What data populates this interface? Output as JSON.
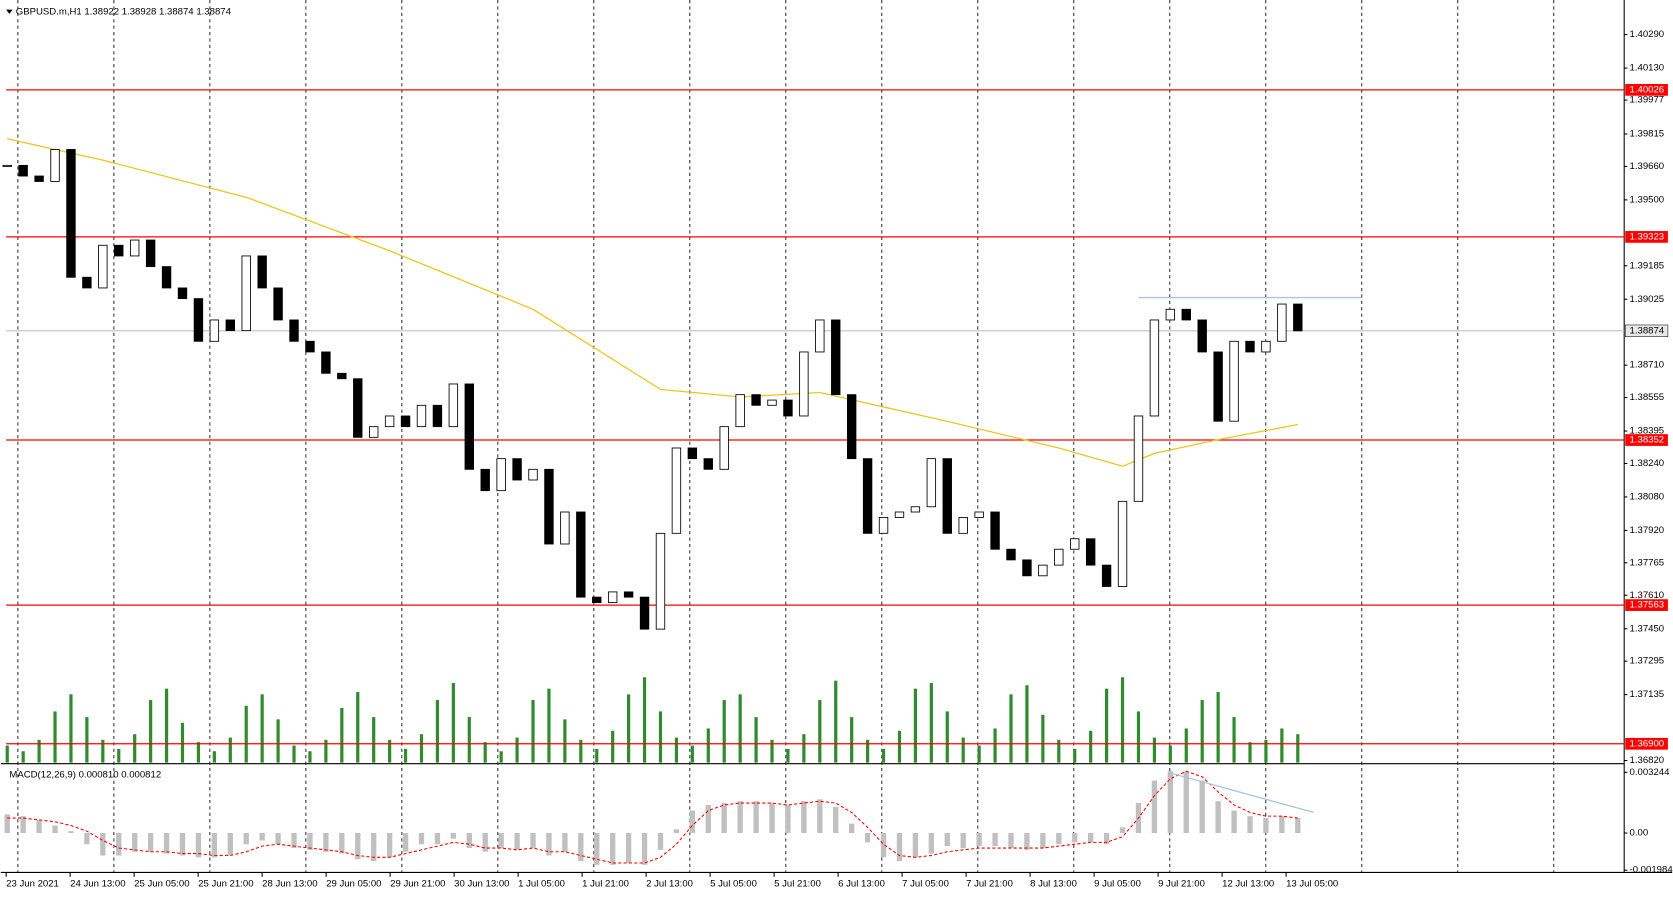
{
  "chart_data": {
    "type": "candlestick",
    "symbol": "GBPUSD.m,H1",
    "quote": [
      1.38922,
      1.38928,
      1.38874,
      1.38874
    ],
    "close": [
      1.39665,
      1.39614,
      1.39588,
      1.39741,
      1.3913,
      1.39079,
      1.39283,
      1.39232,
      1.39308,
      1.39181,
      1.39079,
      1.39028,
      1.38824,
      1.38926,
      1.38875,
      1.39232,
      1.39079,
      1.38926,
      1.38824,
      1.38773,
      1.38671,
      1.38645,
      1.38365,
      1.38416,
      1.38467,
      1.38416,
      1.38518,
      1.38416,
      1.3862,
      1.38212,
      1.3811,
      1.38263,
      1.38161,
      1.38212,
      1.37855,
      1.38008,
      1.37601,
      1.37575,
      1.37626,
      1.37601,
      1.37448,
      1.37906,
      1.38314,
      1.38263,
      1.38212,
      1.38416,
      1.38569,
      1.38518,
      1.38543,
      1.38467,
      1.38773,
      1.38926,
      1.38569,
      1.38263,
      1.37906,
      1.37982,
      1.38008,
      1.38033,
      1.38263,
      1.37906,
      1.37982,
      1.38008,
      1.3783,
      1.37779,
      1.37703,
      1.37754,
      1.3783,
      1.3788,
      1.37754,
      1.37652,
      1.38059,
      1.38467,
      1.38926,
      1.38977,
      1.38926,
      1.38773,
      1.38442,
      1.38824,
      1.38773,
      1.38824,
      1.39002,
      1.38874
    ],
    "up_color": "#ffffff",
    "down_color": "#000000",
    "x_labels": [
      "23 Jun 2021",
      "24 Jun 13:00",
      "25 Jun 05:00",
      "25 Jun 21:00",
      "28 Jun 13:00",
      "29 Jun 05:00",
      "29 Jun 21:00",
      "30 Jun 13:00",
      "1 Jul 05:00",
      "1 Jul 21:00",
      "2 Jul 13:00",
      "5 Jul 05:00",
      "5 Jul 21:00",
      "6 Jul 13:00",
      "7 Jul 05:00",
      "7 Jul 21:00",
      "8 Jul 13:00",
      "9 Jul 05:00",
      "9 Jul 21:00",
      "12 Jul 13:00",
      "13 Jul 05:00"
    ],
    "ylim": [
      1.3681,
      1.4043
    ],
    "yticks": [
      {
        "value": 1.4029,
        "label": "1.40290"
      },
      {
        "value": 1.4013,
        "label": "1.40130"
      },
      1.39977,
      1.39815,
      {
        "value": 1.3966,
        "label": "1.39660"
      },
      {
        "value": 1.395,
        "label": "1.39500"
      },
      1.39185,
      1.39025,
      {
        "value": 1.3871,
        "label": "1.38710"
      },
      1.38555,
      1.38395,
      {
        "value": 1.3824,
        "label": "1.38240"
      },
      {
        "value": 1.3808,
        "label": "1.38080"
      },
      {
        "value": 1.3792,
        "label": "1.37920"
      },
      1.37765,
      {
        "value": 1.3761,
        "label": "1.37610"
      },
      {
        "value": 1.3745,
        "label": "1.37450"
      },
      1.37295,
      1.37135,
      {
        "value": 1.3682,
        "label": "1.36820"
      }
    ],
    "levels": [
      1.40026,
      1.39323,
      1.38352,
      1.37563,
      {
        "value": 1.369,
        "label": "1.36900"
      }
    ],
    "level_color": "#ff0000",
    "current_price": 1.38874,
    "ma": {
      "color": "#f0c419",
      "x": [
        0,
        6,
        15,
        24,
        33,
        41,
        46,
        51,
        59,
        66,
        70,
        72,
        76,
        81
      ],
      "values": [
        1.39792,
        1.3969,
        1.39512,
        1.39257,
        1.38977,
        1.38594,
        1.38558,
        1.38579,
        1.38441,
        1.38314,
        1.38227,
        1.38288,
        1.38354,
        1.38426
      ]
    },
    "resistance": {
      "color": "#a8c4e0",
      "value": 1.39033,
      "x": [
        71,
        85
      ]
    },
    "volumes": [
      15,
      10,
      20,
      45,
      60,
      40,
      20,
      12,
      25,
      55,
      65,
      35,
      18,
      10,
      22,
      50,
      60,
      38,
      15,
      10,
      20,
      48,
      62,
      40,
      20,
      12,
      25,
      55,
      70,
      40,
      18,
      10,
      22,
      55,
      65,
      38,
      20,
      12,
      28,
      60,
      75,
      45,
      22,
      15,
      30,
      55,
      60,
      40,
      20,
      12,
      25,
      55,
      72,
      40,
      20,
      12,
      28,
      65,
      70,
      45,
      22,
      15,
      30,
      60,
      68,
      42,
      20,
      12,
      28,
      65,
      75,
      45,
      22,
      15,
      30,
      55,
      62,
      40,
      18,
      20,
      30,
      25
    ],
    "volume_color": "#2e8b2e",
    "macd": {
      "label": "MACD(12,26,9)",
      "readout": [
        {
          "value": 0.00081,
          "label": "0.000810"
        },
        0.000812
      ],
      "ylim": [
        -0.00205,
        0.00359
      ],
      "yticks": [
        0.003244,
        {
          "value": 0,
          "label": "0.00"
        },
        -0.001984
      ],
      "hist_color": "#c0c0c0",
      "signal_color": "#ff0000",
      "values": [
        0.001,
        0.0009,
        0.0007,
        0.0004,
        0.0001,
        -0.0006,
        -0.0012,
        -0.0012,
        -0.001,
        -0.001,
        -0.0011,
        -0.0012,
        -0.0013,
        -0.0013,
        -0.0012,
        -0.0006,
        -0.0004,
        -0.0006,
        -0.0008,
        -0.0009,
        -0.001,
        -0.0011,
        -0.0014,
        -0.0015,
        -0.0013,
        -0.001,
        -0.0006,
        -0.0006,
        -0.0003,
        -0.0008,
        -0.001,
        -0.0008,
        -0.0009,
        -0.0008,
        -0.0012,
        -0.001,
        -0.0015,
        -0.0017,
        -0.0017,
        -0.0016,
        -0.0017,
        -0.0009,
        0.0002,
        0.0012,
        0.0015,
        0.0016,
        0.0017,
        0.0017,
        0.0016,
        0.0015,
        0.0017,
        0.0018,
        0.0014,
        0.0005,
        -0.0005,
        -0.0013,
        -0.0015,
        -0.0013,
        -0.0011,
        -0.0007,
        -0.0008,
        -0.0007,
        -0.0007,
        -0.0008,
        -0.0009,
        -0.0008,
        -0.0006,
        -0.0005,
        -0.0005,
        -0.0006,
        0.0003,
        0.0016,
        0.0028,
        0.0033,
        0.0033,
        0.0028,
        0.0017,
        0.0012,
        0.0009,
        0.0008,
        0.0009,
        0.0008
      ],
      "signal": [
        0.0008,
        0.0008,
        0.0007,
        0.0006,
        0.0004,
        0.0001,
        -0.0004,
        -0.0008,
        -0.0009,
        -0.001,
        -0.001,
        -0.0011,
        -0.0011,
        -0.0012,
        -0.0012,
        -0.001,
        -0.0007,
        -0.0006,
        -0.0007,
        -0.0008,
        -0.0009,
        -0.001,
        -0.0012,
        -0.0013,
        -0.0013,
        -0.0011,
        -0.0009,
        -0.0007,
        -0.0005,
        -0.0006,
        -0.0008,
        -0.0008,
        -0.0009,
        -0.0008,
        -0.001,
        -0.001,
        -0.0012,
        -0.0014,
        -0.0016,
        -0.0016,
        -0.0016,
        -0.0013,
        -0.0006,
        0.0004,
        0.0012,
        0.0015,
        0.0016,
        0.0016,
        0.0016,
        0.0015,
        0.0016,
        0.0017,
        0.0016,
        0.0011,
        0.0003,
        -0.0006,
        -0.0012,
        -0.0013,
        -0.0012,
        -0.001,
        -0.0009,
        -0.0008,
        -0.0008,
        -0.0008,
        -0.0008,
        -0.0008,
        -0.0007,
        -0.0006,
        -0.0005,
        -0.0005,
        -0.0002,
        0.0008,
        0.002,
        0.0029,
        0.0033,
        0.003,
        0.0022,
        0.0015,
        0.0011,
        0.0009,
        0.0009,
        0.0008
      ],
      "trend": {
        "color": "#a8c4e0",
        "x": [
          73,
          82
        ],
        "values": [
          0.0032,
          0.0011
        ]
      }
    }
  }
}
